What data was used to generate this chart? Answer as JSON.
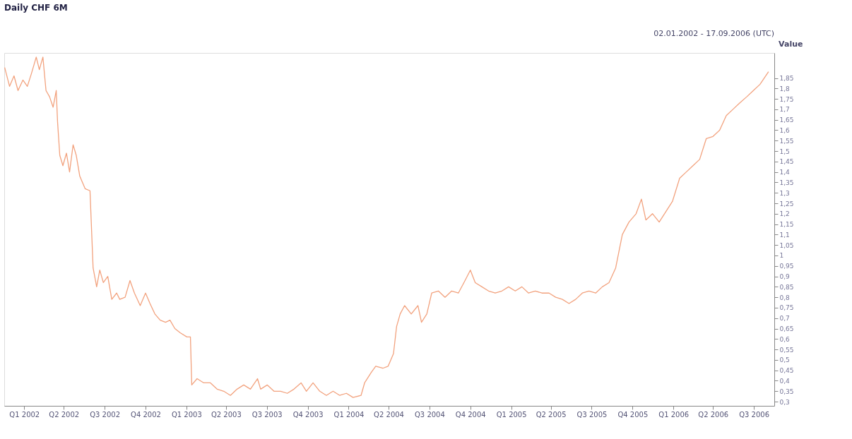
{
  "chart_data": {
    "type": "line",
    "title": "Daily CHF 6M",
    "subtitle": "02.01.2002 - 17.09.2006 (UTC)",
    "ylabel": "Value",
    "x": [
      "2002-01-02",
      "2002-01-13",
      "2002-01-23",
      "2002-02-01",
      "2002-02-12",
      "2002-02-22",
      "2002-03-03",
      "2002-03-14",
      "2002-03-21",
      "2002-03-29",
      "2002-04-05",
      "2002-04-13",
      "2002-04-21",
      "2002-04-28",
      "2002-05-01",
      "2002-05-06",
      "2002-05-13",
      "2002-05-21",
      "2002-05-28",
      "2002-06-05",
      "2002-06-12",
      "2002-06-20",
      "2002-07-02",
      "2002-07-13",
      "2002-07-20",
      "2002-07-28",
      "2002-08-04",
      "2002-08-12",
      "2002-08-22",
      "2002-08-31",
      "2002-09-11",
      "2002-09-18",
      "2002-09-30",
      "2002-10-11",
      "2002-10-21",
      "2002-11-03",
      "2002-11-15",
      "2002-11-25",
      "2002-12-06",
      "2002-12-18",
      "2002-12-30",
      "2003-01-09",
      "2003-01-20",
      "2003-02-01",
      "2003-02-16",
      "2003-02-24",
      "2003-02-27",
      "2003-03-11",
      "2003-03-26",
      "2003-04-10",
      "2003-04-25",
      "2003-05-10",
      "2003-05-25",
      "2003-06-09",
      "2003-06-24",
      "2003-07-09",
      "2003-07-25",
      "2003-08-01",
      "2003-08-16",
      "2003-08-31",
      "2003-09-15",
      "2003-09-30",
      "2003-10-15",
      "2003-10-31",
      "2003-11-12",
      "2003-11-27",
      "2003-12-12",
      "2003-12-27",
      "2004-01-11",
      "2004-01-26",
      "2004-02-10",
      "2004-02-25",
      "2004-03-14",
      "2004-03-22",
      "2004-04-06",
      "2004-04-16",
      "2004-05-02",
      "2004-05-14",
      "2004-05-26",
      "2004-06-02",
      "2004-06-10",
      "2004-06-20",
      "2004-07-05",
      "2004-07-20",
      "2004-07-28",
      "2004-08-09",
      "2004-08-20",
      "2004-09-04",
      "2004-09-19",
      "2004-10-04",
      "2004-10-19",
      "2004-11-03",
      "2004-11-15",
      "2004-11-26",
      "2004-12-11",
      "2004-12-26",
      "2005-01-10",
      "2005-01-25",
      "2005-02-09",
      "2005-02-24",
      "2005-03-11",
      "2005-03-26",
      "2005-04-10",
      "2005-04-25",
      "2005-05-11",
      "2005-05-26",
      "2005-06-10",
      "2005-06-25",
      "2005-07-10",
      "2005-07-25",
      "2005-08-09",
      "2005-08-24",
      "2005-09-08",
      "2005-09-23",
      "2005-10-08",
      "2005-10-23",
      "2005-11-07",
      "2005-11-23",
      "2005-12-05",
      "2005-12-15",
      "2005-12-30",
      "2006-01-14",
      "2006-01-29",
      "2006-02-13",
      "2006-03-01",
      "2006-03-16",
      "2006-03-31",
      "2006-04-15",
      "2006-04-30",
      "2006-05-15",
      "2006-05-30",
      "2006-06-14",
      "2006-06-29",
      "2006-07-14",
      "2006-07-30",
      "2006-08-14",
      "2006-08-29",
      "2006-09-17"
    ],
    "series": [
      {
        "color": "#f2a27e",
        "values": [
          1.9,
          1.81,
          1.86,
          1.79,
          1.84,
          1.81,
          1.87,
          1.95,
          1.89,
          1.95,
          1.79,
          1.76,
          1.71,
          1.79,
          1.64,
          1.48,
          1.43,
          1.49,
          1.4,
          1.53,
          1.48,
          1.38,
          1.32,
          1.31,
          0.94,
          0.85,
          0.93,
          0.87,
          0.9,
          0.79,
          0.82,
          0.79,
          0.8,
          0.88,
          0.82,
          0.76,
          0.82,
          0.77,
          0.72,
          0.69,
          0.68,
          0.69,
          0.65,
          0.63,
          0.61,
          0.61,
          0.38,
          0.41,
          0.39,
          0.39,
          0.36,
          0.35,
          0.33,
          0.36,
          0.38,
          0.36,
          0.41,
          0.36,
          0.38,
          0.35,
          0.35,
          0.34,
          0.36,
          0.39,
          0.35,
          0.39,
          0.35,
          0.33,
          0.35,
          0.33,
          0.34,
          0.32,
          0.33,
          0.39,
          0.44,
          0.47,
          0.46,
          0.47,
          0.53,
          0.66,
          0.72,
          0.76,
          0.72,
          0.76,
          0.68,
          0.72,
          0.82,
          0.83,
          0.8,
          0.83,
          0.82,
          0.88,
          0.93,
          0.87,
          0.85,
          0.83,
          0.82,
          0.83,
          0.85,
          0.83,
          0.85,
          0.82,
          0.83,
          0.82,
          0.82,
          0.8,
          0.79,
          0.77,
          0.79,
          0.82,
          0.83,
          0.82,
          0.85,
          0.87,
          0.94,
          1.1,
          1.16,
          1.2,
          1.27,
          1.17,
          1.2,
          1.16,
          1.21,
          1.26,
          1.37,
          1.4,
          1.43,
          1.46,
          1.56,
          1.57,
          1.6,
          1.67,
          1.7,
          1.73,
          1.76,
          1.79,
          1.82,
          1.88
        ]
      }
    ],
    "xlim": [
      "2002-01-01",
      "2006-09-30"
    ],
    "xticks": [
      {
        "value": "2002-02-15",
        "label": "Q1 2002"
      },
      {
        "value": "2002-05-15",
        "label": "Q2 2002"
      },
      {
        "value": "2002-08-15",
        "label": "Q3 2002"
      },
      {
        "value": "2002-11-15",
        "label": "Q4 2002"
      },
      {
        "value": "2003-02-15",
        "label": "Q1 2003"
      },
      {
        "value": "2003-05-15",
        "label": "Q2 2003"
      },
      {
        "value": "2003-08-15",
        "label": "Q3 2003"
      },
      {
        "value": "2003-11-15",
        "label": "Q4 2003"
      },
      {
        "value": "2004-02-15",
        "label": "Q1 2004"
      },
      {
        "value": "2004-05-15",
        "label": "Q2 2004"
      },
      {
        "value": "2004-08-15",
        "label": "Q3 2004"
      },
      {
        "value": "2004-11-15",
        "label": "Q4 2004"
      },
      {
        "value": "2005-02-15",
        "label": "Q1 2005"
      },
      {
        "value": "2005-05-15",
        "label": "Q2 2005"
      },
      {
        "value": "2005-08-15",
        "label": "Q3 2005"
      },
      {
        "value": "2005-11-15",
        "label": "Q4 2005"
      },
      {
        "value": "2006-02-15",
        "label": "Q1 2006"
      },
      {
        "value": "2006-05-15",
        "label": "Q2 2006"
      },
      {
        "value": "2006-08-15",
        "label": "Q3 2006"
      }
    ],
    "ylim": [
      0.28,
      1.97
    ],
    "yticks": [
      {
        "value": 0.3,
        "label": "0,3"
      },
      {
        "value": 0.35,
        "label": "0,35"
      },
      {
        "value": 0.4,
        "label": "0,4"
      },
      {
        "value": 0.45,
        "label": "0,45"
      },
      {
        "value": 0.5,
        "label": "0,5"
      },
      {
        "value": 0.55,
        "label": "0,55"
      },
      {
        "value": 0.6,
        "label": "0,6"
      },
      {
        "value": 0.65,
        "label": "0,65"
      },
      {
        "value": 0.7,
        "label": "0,7"
      },
      {
        "value": 0.75,
        "label": "0,75"
      },
      {
        "value": 0.8,
        "label": "0,8"
      },
      {
        "value": 0.85,
        "label": "0,85"
      },
      {
        "value": 0.9,
        "label": "0,9"
      },
      {
        "value": 0.95,
        "label": "0,95"
      },
      1,
      {
        "value": 1.05,
        "label": "1,05"
      },
      {
        "value": 1.1,
        "label": "1,1"
      },
      {
        "value": 1.15,
        "label": "1,15"
      },
      {
        "value": 1.2,
        "label": "1,2"
      },
      {
        "value": 1.25,
        "label": "1,25"
      },
      {
        "value": 1.3,
        "label": "1,3"
      },
      {
        "value": 1.35,
        "label": "1,35"
      },
      {
        "value": 1.4,
        "label": "1,4"
      },
      {
        "value": 1.45,
        "label": "1,45"
      },
      {
        "value": 1.5,
        "label": "1,5"
      },
      {
        "value": 1.55,
        "label": "1,55"
      },
      {
        "value": 1.6,
        "label": "1,6"
      },
      {
        "value": 1.65,
        "label": "1,65"
      },
      {
        "value": 1.7,
        "label": "1,7"
      },
      {
        "value": 1.75,
        "label": "1,75"
      },
      {
        "value": 1.8,
        "label": "1,8"
      },
      {
        "value": 1.85,
        "label": "1,85"
      }
    ],
    "grid": false,
    "legend": false,
    "marker": "none",
    "line_style": "solid"
  }
}
